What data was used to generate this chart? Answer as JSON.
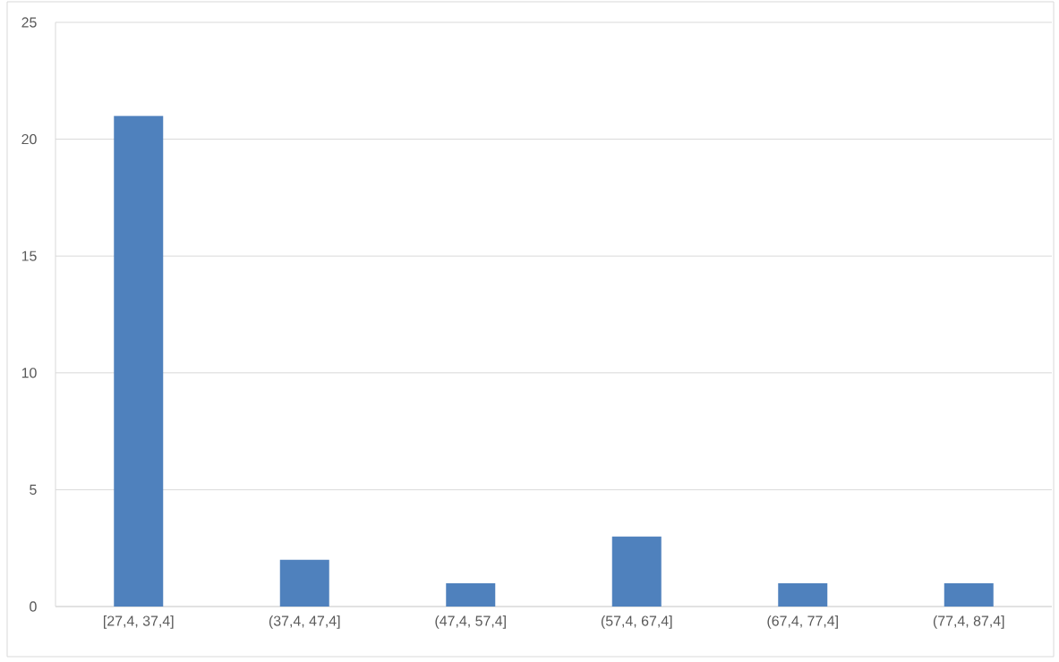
{
  "chart_data": {
    "type": "bar",
    "categories": [
      "[27,4, 37,4]",
      "(37,4, 47,4]",
      "(47,4, 57,4]",
      "(57,4, 67,4]",
      "(67,4, 77,4]",
      "(77,4, 87,4]"
    ],
    "values": [
      21,
      2,
      1,
      3,
      1,
      1
    ],
    "color": "#4f81bd",
    "ylim": [
      0,
      25
    ],
    "yticks": [
      0,
      5,
      10,
      15,
      20,
      25
    ],
    "grid": "y"
  }
}
